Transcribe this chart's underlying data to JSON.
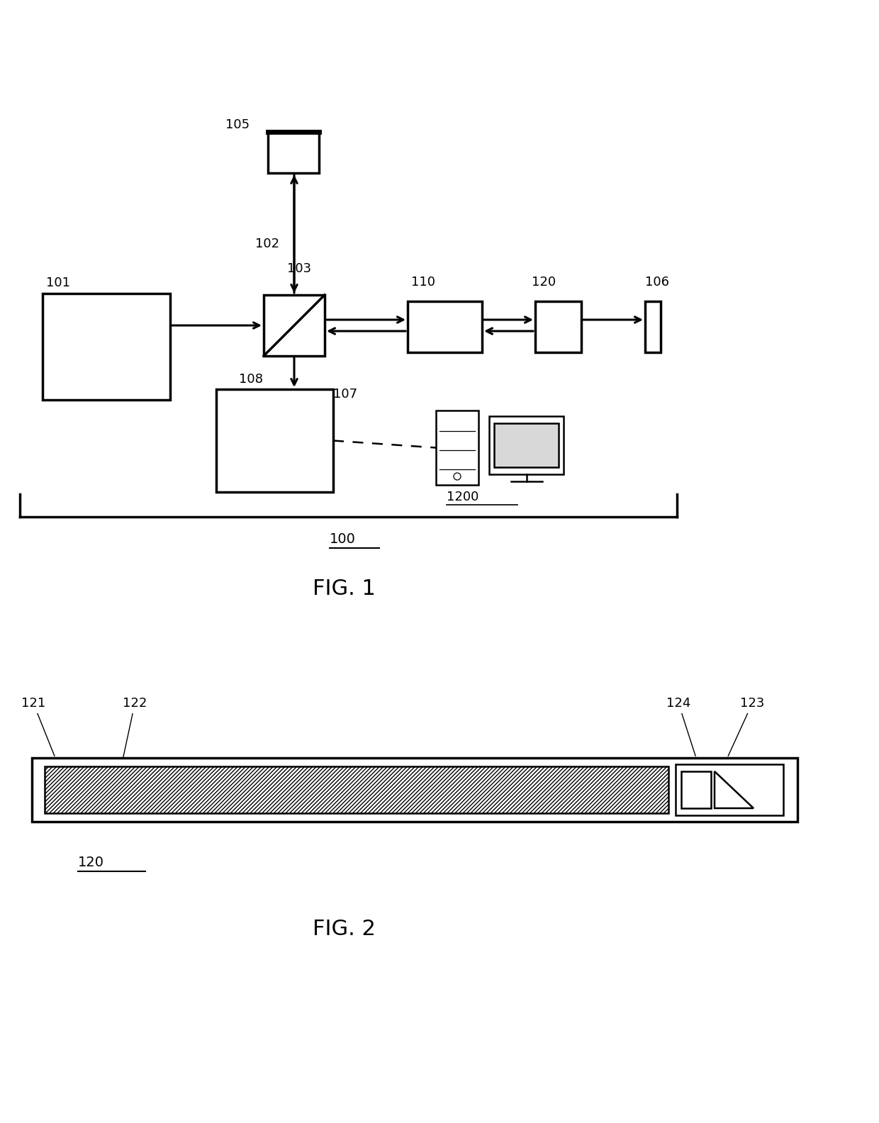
{
  "fig_width": 12.4,
  "fig_height": 15.84,
  "background_color": "#ffffff",
  "line_color": "#000000",
  "fig1_title": "FIG. 1",
  "fig2_title": "FIG. 2",
  "label_101": "101",
  "label_102": "102",
  "label_103": "103",
  "label_105": "105",
  "label_106": "106",
  "label_107": "107",
  "label_108": "108",
  "label_110": "110",
  "label_120_fig1": "120",
  "label_100": "100",
  "label_1200": "1200",
  "label_121": "121",
  "label_122": "122",
  "label_123": "123",
  "label_124": "124",
  "label_120_fig2": "120"
}
